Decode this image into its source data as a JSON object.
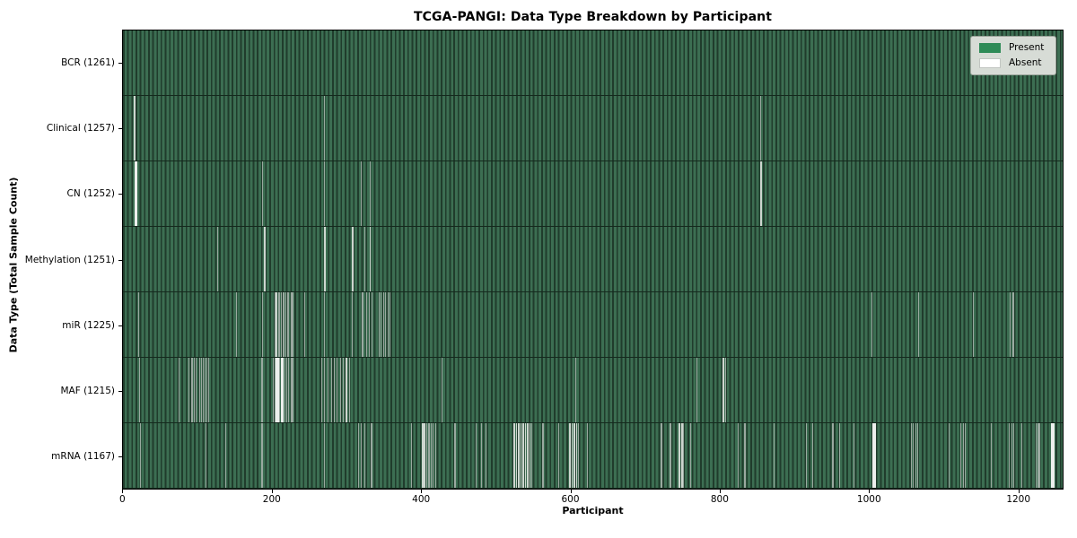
{
  "title": "TCGA-PANGI: Data Type Breakdown by Participant",
  "axes": {
    "xlabel": "Participant",
    "ylabel": "Data Type (Total Sample Count)"
  },
  "legend": {
    "present_label": "Present",
    "absent_label": "Absent",
    "present_color": "#2e8b57",
    "absent_color": "#ffffff"
  },
  "colors": {
    "bar_stripe_light": "#3c6e52",
    "bar_stripe_dark": "#203c2c",
    "row_separator": "#14291d",
    "gap_single": "#9aa9a0",
    "gap_double": "#cdd6cf",
    "gap_wide": "#edf0ed",
    "legend_bg": "#d7dcd6"
  },
  "x_ticks": [
    0,
    200,
    400,
    600,
    800,
    1000,
    1200
  ],
  "chart_data": {
    "type": "heatmap",
    "title": "TCGA-PANGI: Data Type Breakdown by Participant",
    "xlabel": "Participant",
    "ylabel": "Data Type (Total Sample Count)",
    "x_range": [
      0,
      1260
    ],
    "total_participants": 1261,
    "legend_entries": [
      "Present",
      "Absent"
    ],
    "legend_position": "upper right",
    "rows": [
      {
        "data_type": "BCR",
        "label": "BCR (1261)",
        "present_count": 1261,
        "absent_indices": []
      },
      {
        "data_type": "Clinical",
        "label": "Clinical (1257)",
        "present_count": 1257,
        "absent_indices": [
          15,
          16,
          270,
          855
        ]
      },
      {
        "data_type": "CN",
        "label": "CN (1252)",
        "present_count": 1252,
        "absent_indices": [
          16,
          17,
          18,
          187,
          270,
          319,
          331,
          855,
          856
        ]
      },
      {
        "data_type": "Methylation",
        "label": "Methylation (1251)",
        "present_count": 1251,
        "absent_indices": [
          126,
          189,
          190,
          270,
          271,
          307,
          308,
          324,
          331,
          332
        ]
      },
      {
        "data_type": "miR",
        "label": "miR (1225)",
        "present_count": 1225,
        "absent_indices": [
          20,
          152,
          187,
          203,
          205,
          206,
          208,
          210,
          212,
          214,
          216,
          218,
          220,
          222,
          225,
          227,
          243,
          270,
          307,
          320,
          322,
          326,
          330,
          334,
          343,
          346,
          349,
          352,
          355,
          358,
          1004,
          1067,
          1140,
          1190,
          1193,
          1195
        ]
      },
      {
        "data_type": "MAF",
        "label": "MAF (1215)",
        "present_count": 1215,
        "absent_indices": [
          22,
          75,
          88,
          91,
          93,
          95,
          98,
          102,
          105,
          107,
          109,
          112,
          114,
          186,
          201,
          203,
          205,
          206,
          207,
          208,
          210,
          212,
          213,
          214,
          217,
          219,
          222,
          225,
          227,
          266,
          270,
          275,
          279,
          283,
          287,
          291,
          295,
          299,
          300,
          303,
          428,
          607,
          770,
          805,
          806,
          808
        ]
      },
      {
        "data_type": "mRNA",
        "label": "mRNA (1167)",
        "present_count": 1167,
        "absent_indices": [
          23,
          111,
          137,
          186,
          270,
          316,
          319,
          324,
          333,
          387,
          401,
          402,
          404,
          405,
          407,
          410,
          413,
          416,
          419,
          445,
          473,
          480,
          487,
          524,
          525,
          527,
          528,
          530,
          531,
          533,
          534,
          536,
          537,
          539,
          540,
          542,
          543,
          545,
          546,
          548,
          563,
          584,
          599,
          600,
          602,
          603,
          605,
          606,
          608,
          609,
          611,
          623,
          722,
          734,
          746,
          747,
          749,
          750,
          752,
          761,
          825,
          834,
          873,
          916,
          925,
          952,
          961,
          980,
          1006,
          1007,
          1008,
          1009,
          1010,
          1057,
          1060,
          1063,
          1066,
          1108,
          1124,
          1127,
          1130,
          1165,
          1189,
          1192,
          1195,
          1205,
          1225,
          1227,
          1229,
          1245,
          1246,
          1247,
          1248,
          1249
        ]
      }
    ]
  }
}
